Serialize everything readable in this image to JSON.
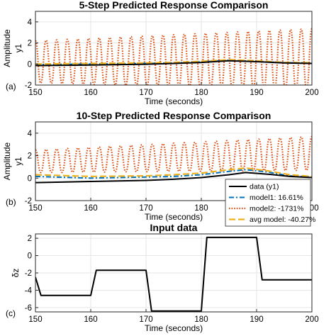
{
  "colors": {
    "data": "#000000",
    "model1": "#0072BD",
    "model2": "#D95319",
    "avg": "#EDB120",
    "grid": "#e6e6e6",
    "axis": "#262626"
  },
  "chart_data": [
    {
      "panel_label": "(a)",
      "type": "line",
      "title": "5-Step Predicted Response Comparison",
      "xlabel": "Time (seconds)",
      "ylabel": "Amplitude",
      "ylabel2": "y1",
      "xlim": [
        150,
        200
      ],
      "ylim": [
        -2,
        5
      ],
      "xticks": [
        150,
        160,
        170,
        180,
        190,
        200
      ],
      "yticks": [
        -2,
        0,
        2,
        4
      ],
      "grid": true,
      "series": [
        {
          "key": "data",
          "x": [
            150,
            160,
            170,
            175,
            180,
            185,
            190,
            195,
            200
          ],
          "y": [
            -0.15,
            -0.1,
            -0.02,
            0.05,
            0.15,
            0.3,
            0.22,
            0.1,
            0.05
          ]
        },
        {
          "key": "model1",
          "x": [
            150,
            160,
            170,
            175,
            180,
            185,
            190,
            195,
            200
          ],
          "y": [
            -0.05,
            0.0,
            0.05,
            0.1,
            0.2,
            0.35,
            0.25,
            0.12,
            0.1
          ]
        },
        {
          "key": "avg",
          "x": [
            150,
            160,
            170,
            175,
            180,
            185,
            190,
            195,
            200
          ],
          "y": [
            0.0,
            0.05,
            0.1,
            0.15,
            0.25,
            0.4,
            0.3,
            0.15,
            0.12
          ]
        },
        {
          "key": "model2",
          "oscillation": {
            "cycles": 26,
            "start": 150,
            "end": 200,
            "center_start": 0.2,
            "center_end": 0.45,
            "amp_start": 2.0,
            "amp_end": 2.9
          }
        }
      ]
    },
    {
      "panel_label": "(b)",
      "type": "line",
      "title": "10-Step Predicted Response Comparison",
      "xlabel": "Time (seconds)",
      "ylabel": "Amplitude",
      "ylabel2": "y1",
      "xlim": [
        150,
        200
      ],
      "ylim": [
        -2,
        5
      ],
      "xticks": [
        150,
        160,
        170,
        180,
        190,
        200
      ],
      "yticks": [
        -2,
        0,
        2,
        4
      ],
      "grid": true,
      "series": [
        {
          "key": "data",
          "x": [
            150,
            160,
            170,
            175,
            180,
            185,
            188,
            192,
            196,
            200
          ],
          "y": [
            -0.4,
            -0.3,
            -0.2,
            -0.1,
            0.05,
            0.3,
            0.5,
            0.35,
            0.15,
            0.05
          ]
        },
        {
          "key": "model1",
          "x": [
            150,
            160,
            170,
            175,
            180,
            185,
            188,
            192,
            196,
            200
          ],
          "y": [
            0.15,
            0.0,
            0.1,
            0.15,
            0.3,
            0.6,
            0.75,
            0.55,
            0.2,
            0.1
          ]
        },
        {
          "key": "avg",
          "x": [
            150,
            160,
            170,
            175,
            180,
            185,
            188,
            192,
            196,
            200
          ],
          "y": [
            0.3,
            0.15,
            0.2,
            0.3,
            0.45,
            0.75,
            0.9,
            0.65,
            0.3,
            0.15
          ]
        },
        {
          "key": "model2",
          "oscillation": {
            "cycles": 26,
            "start": 150,
            "end": 200,
            "center_start": 1.5,
            "center_end": 2.2,
            "amp_start": 1.0,
            "amp_end": 1.5
          }
        }
      ],
      "legend": {
        "placement": "bottom-right",
        "entries": [
          {
            "key": "data",
            "label": "data (y1)"
          },
          {
            "key": "model1",
            "label": "model1: 16.61%"
          },
          {
            "key": "model2",
            "label": "model2: -1731%"
          },
          {
            "key": "avg",
            "label": "avg model: -40.27%"
          }
        ]
      }
    },
    {
      "panel_label": "(c)",
      "type": "line",
      "title": "Input data",
      "xlabel": "Time (seconds)",
      "ylabel": "δz",
      "xlim": [
        150,
        200
      ],
      "ylim": [
        -6.5,
        2.5
      ],
      "xticks": [
        150,
        160,
        170,
        180,
        190,
        200
      ],
      "yticks": [
        -6,
        -4,
        -2,
        0,
        2
      ],
      "grid": true,
      "series": [
        {
          "key": "data",
          "x": [
            150,
            151,
            160,
            161,
            170,
            171,
            180,
            181,
            190,
            191,
            200
          ],
          "y": [
            -2.5,
            -4.6,
            -4.6,
            -1.7,
            -1.7,
            -6.4,
            -6.4,
            2.1,
            2.1,
            -2.8,
            -2.8
          ]
        }
      ]
    }
  ]
}
